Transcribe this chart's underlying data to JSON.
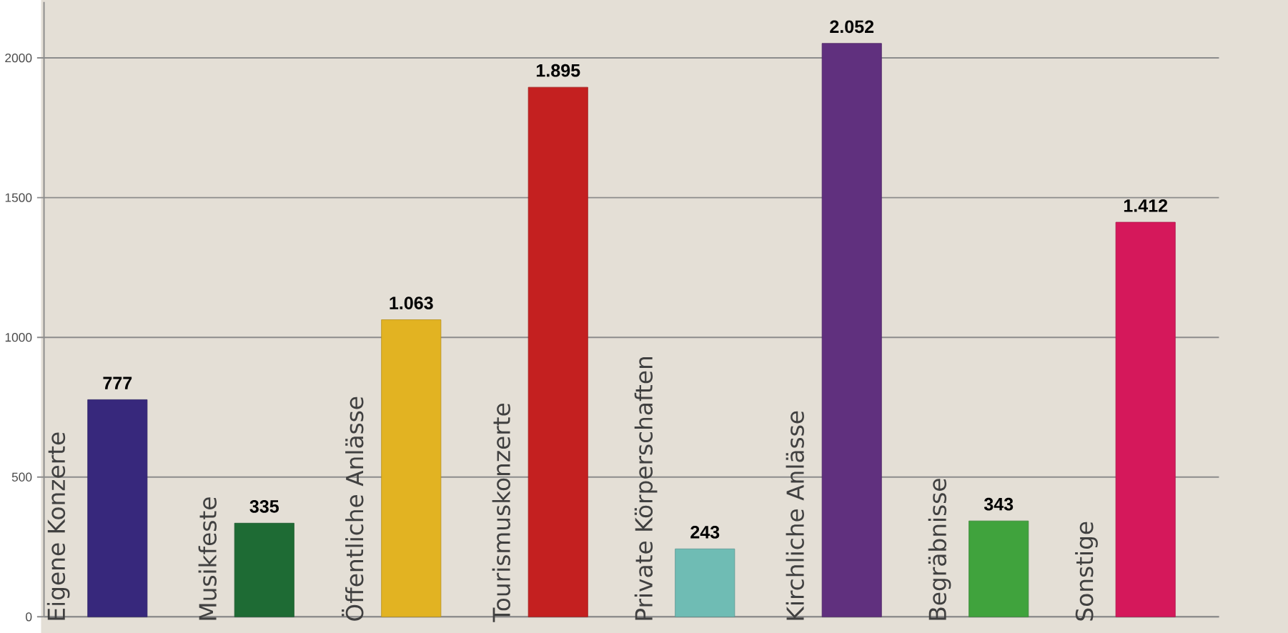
{
  "chart_data": {
    "type": "bar",
    "categories": [
      "Eigene Konzerte",
      "Musikfeste",
      "Öffentliche Anlässe",
      "Tourismuskonzerte",
      "Private Körperschaften",
      "Kirchliche Anlässe",
      "Begräbnisse",
      "Sonstige"
    ],
    "values": [
      777,
      335,
      1063,
      1895,
      243,
      2052,
      343,
      1412
    ],
    "value_labels": [
      "777",
      "335",
      "1.063",
      "1.895",
      "243",
      "2.052",
      "343",
      "1.412"
    ],
    "colors": [
      "#37287c",
      "#1e6b34",
      "#e2b322",
      "#c42020",
      "#6fbcb4",
      "#60307e",
      "#40a33d",
      "#d5185b"
    ],
    "ylim": [
      0,
      2200
    ],
    "yticks": [
      0,
      500,
      1000,
      1500,
      2000
    ],
    "grid": "y"
  }
}
